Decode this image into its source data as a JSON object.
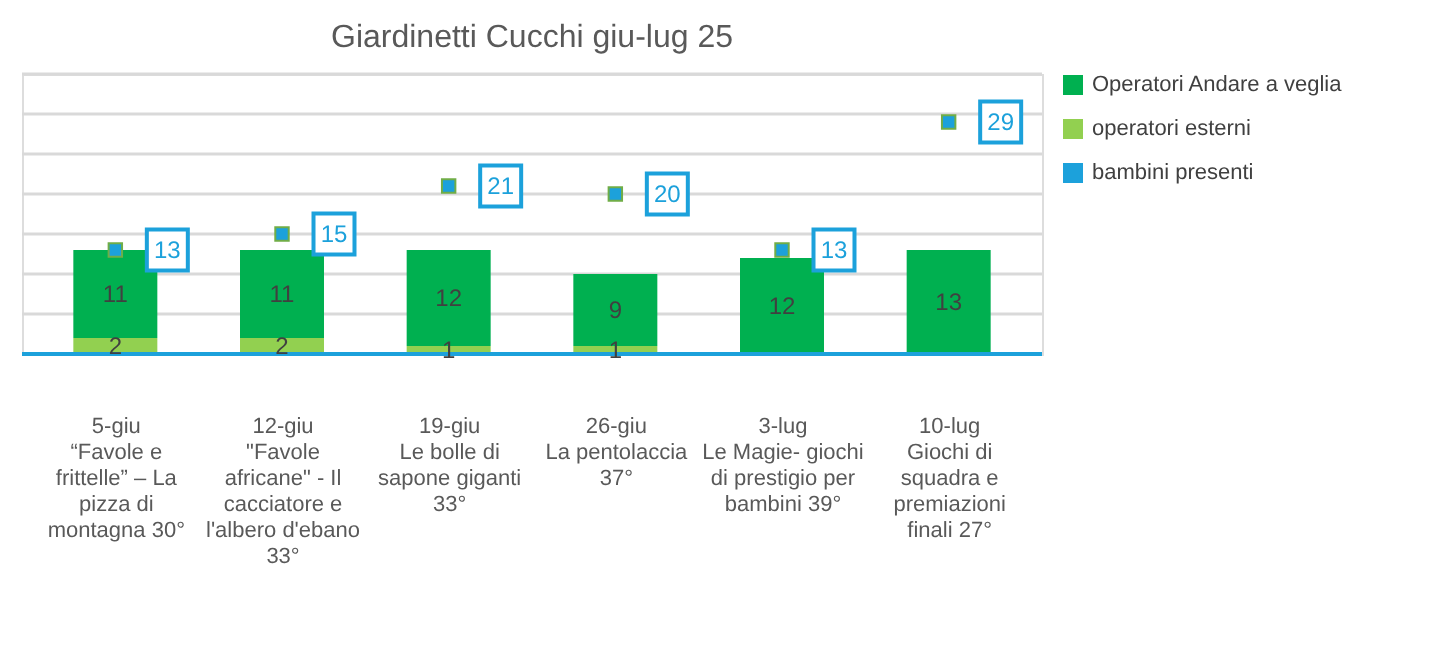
{
  "chart_data": {
    "type": "bar",
    "title": "Giardinetti Cucchi giu-lug 25",
    "categories": [
      "5-giu\n“Favole e\nfrittelle” – La\npizza di\nmontagna 30°",
      "12-giu\n\"Favole\nafricane\" - Il\ncacciatore e\nl'albero d'ebano\n33°",
      "19-giu\nLe bolle di\nsapone giganti\n33°",
      "26-giu\nLa pentolaccia\n37°",
      "3-lug\nLe Magie- giochi\ndi prestigio per\nbambini  39°",
      "10-lug\nGiochi di\nsquadra e\npremiazioni\nfinali  27°"
    ],
    "stacked": true,
    "series": [
      {
        "name": "operatori esterni",
        "color": "#92d050",
        "values": [
          2,
          2,
          1,
          1,
          null,
          null
        ]
      },
      {
        "name": "Operatori Andare a veglia",
        "color": "#00b050",
        "values": [
          11,
          11,
          12,
          9,
          12,
          13
        ]
      },
      {
        "name": "bambini presenti",
        "color": "#1ca1db",
        "type": "scatter",
        "marker": "square",
        "values": [
          13,
          15,
          21,
          20,
          13,
          29
        ]
      }
    ],
    "ylim": [
      0,
      35
    ],
    "yticks": [
      {
        "value": 0,
        "label": null
      },
      {
        "value": 5,
        "label": null
      },
      {
        "value": 10,
        "label": null
      },
      {
        "value": 15,
        "label": null
      },
      {
        "value": 20,
        "label": null
      },
      {
        "value": 25,
        "label": null
      },
      {
        "value": 30,
        "label": null
      },
      {
        "value": 35,
        "label": null
      }
    ],
    "grid": "y",
    "legend": "top right",
    "tick_labels": "x",
    "data_labels": true
  }
}
